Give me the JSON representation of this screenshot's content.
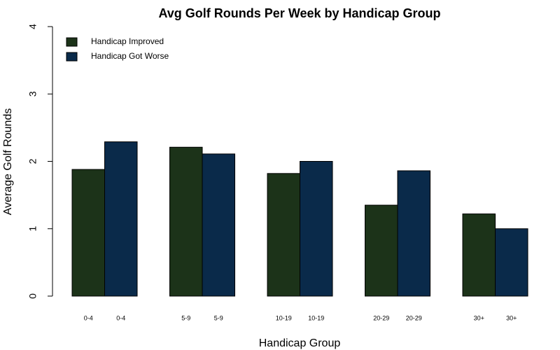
{
  "chart_data": {
    "type": "bar",
    "title": "Avg Golf Rounds Per Week by Handicap Group",
    "x_label": "Handicap Group",
    "y_label": "Average Golf Rounds",
    "categories": [
      "0-4",
      "5-9",
      "10-19",
      "20-29",
      "30+"
    ],
    "series": [
      {
        "name": "Handicap Improved",
        "color": "#1c3319",
        "values": [
          1.88,
          2.21,
          1.82,
          1.35,
          1.22
        ]
      },
      {
        "name": "Handicap Got Worse",
        "color": "#0a2a4a",
        "values": [
          2.29,
          2.11,
          2.0,
          1.86,
          1.0
        ]
      }
    ],
    "ylim": [
      0,
      4
    ],
    "yticks": [
      0,
      1,
      2,
      3,
      4
    ],
    "legend": "top-left"
  }
}
